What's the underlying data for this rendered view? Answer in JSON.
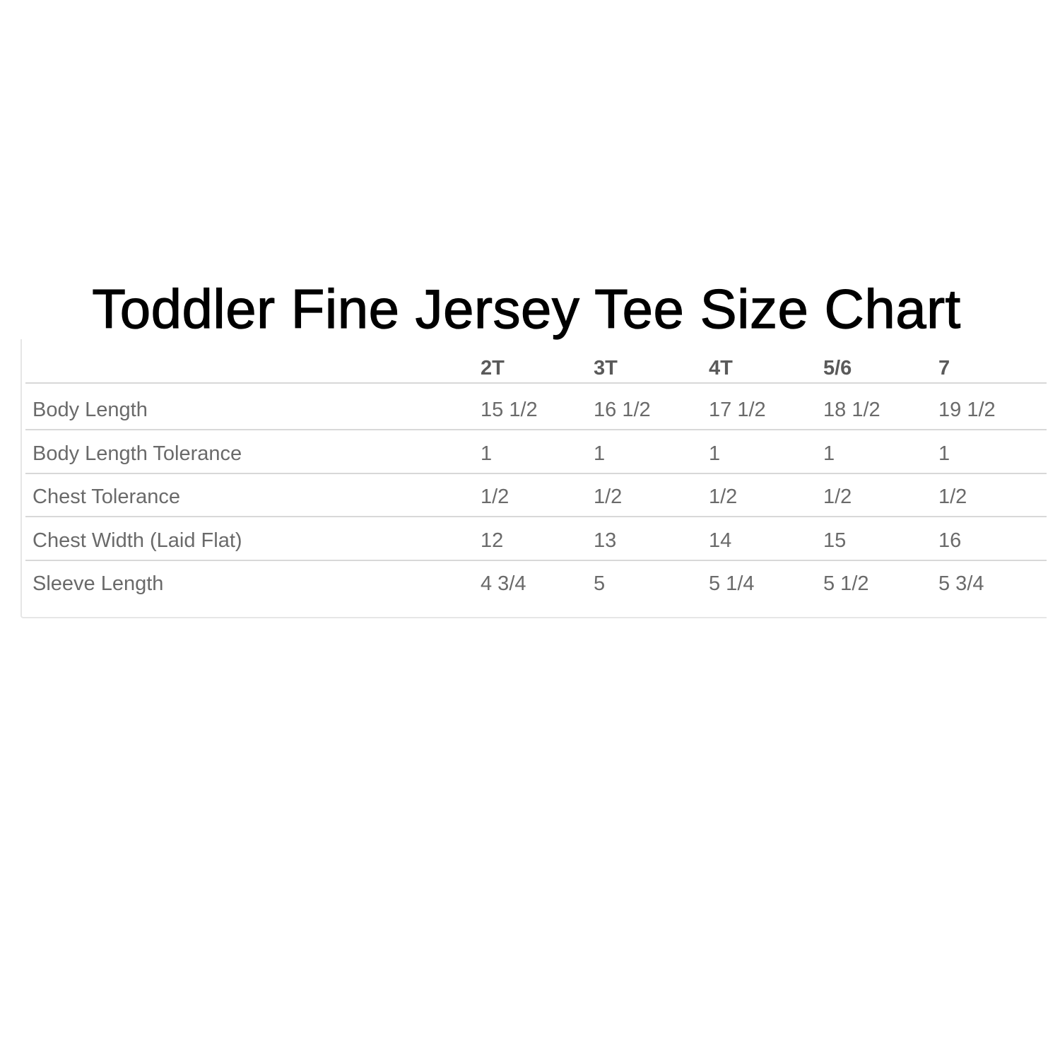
{
  "title": "Toddler Fine Jersey Tee Size Chart",
  "table": {
    "columns": [
      "",
      "2T",
      "3T",
      "4T",
      "5/6",
      "7"
    ],
    "rows": [
      {
        "label": "Body Length",
        "values": [
          "15 1/2",
          "16 1/2",
          "17 1/2",
          "18 1/2",
          "19 1/2"
        ]
      },
      {
        "label": "Body Length Tolerance",
        "values": [
          "1",
          "1",
          "1",
          "1",
          "1"
        ]
      },
      {
        "label": "Chest Tolerance",
        "values": [
          "1/2",
          "1/2",
          "1/2",
          "1/2",
          "1/2"
        ]
      },
      {
        "label": "Chest Width (Laid Flat)",
        "values": [
          "12",
          "13",
          "14",
          "15",
          "16"
        ]
      },
      {
        "label": "Sleeve Length",
        "values": [
          "4 3/4",
          "5",
          "5 1/4",
          "5 1/2",
          "5 3/4"
        ]
      }
    ]
  }
}
